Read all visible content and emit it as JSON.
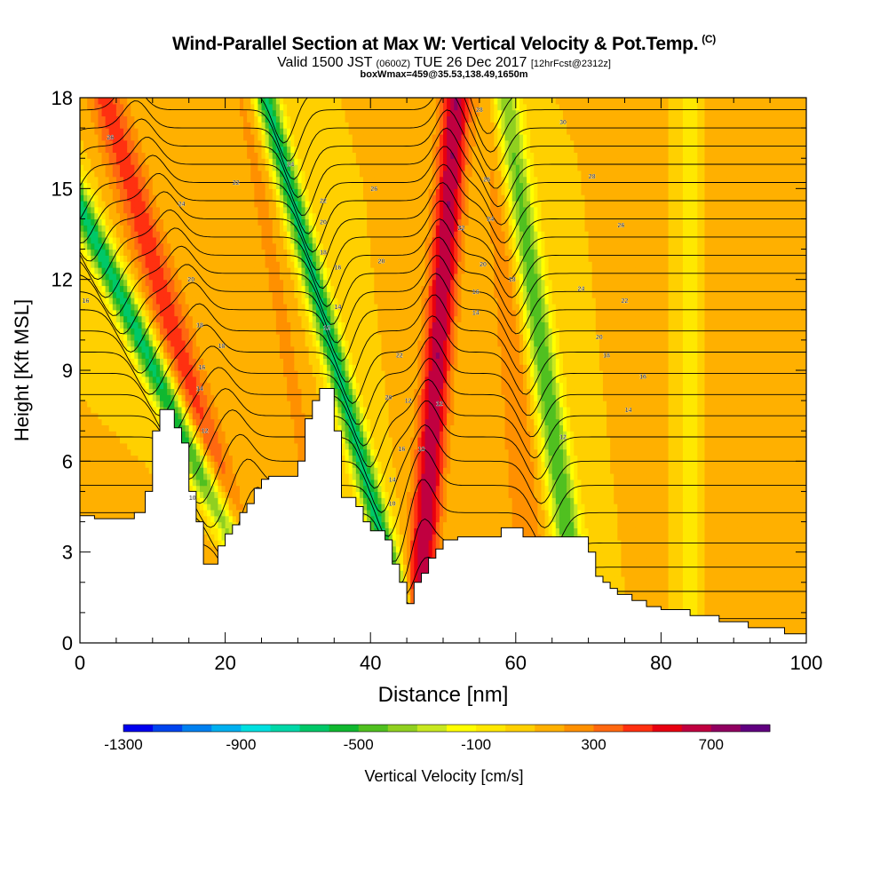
{
  "header": {
    "title": "Wind-Parallel Section at Max W: Vertical Velocity & Pot.Temp.",
    "copyright": "(C)",
    "valid_pre": "Valid 1500 JST",
    "valid_utc": "(0600Z)",
    "valid_date": "TUE 26 Dec 2017",
    "forecast": "[12hrFcst@2312z]",
    "box": "boxWmax=459@35.53,138.49,1650m"
  },
  "chart_data": {
    "type": "heatmap",
    "xlabel": "Distance [nm]",
    "ylabel": "Height [Kft MSL]",
    "xlim": [
      0,
      100
    ],
    "ylim": [
      0,
      18
    ],
    "xticks": [
      0,
      20,
      40,
      60,
      80,
      100
    ],
    "yticks": [
      0,
      3,
      6,
      9,
      12,
      15,
      18
    ],
    "xtick_labels": [
      "0",
      "20",
      "40",
      "60",
      "80",
      "100"
    ],
    "ytick_labels": [
      "0",
      "3",
      "6",
      "9",
      "12",
      "15",
      "18"
    ],
    "colorbar": {
      "label": "Vertical Velocity [cm/s]",
      "min": -1300,
      "step": 100,
      "tick_labels": [
        "-1300",
        "-900",
        "-500",
        "-100",
        "300",
        "700"
      ],
      "colors": [
        "#0000ee",
        "#0044ee",
        "#0080f0",
        "#00b0f0",
        "#00e0e0",
        "#00d8a8",
        "#00c868",
        "#10b830",
        "#50c020",
        "#90d020",
        "#c8e820",
        "#ffff00",
        "#ffe800",
        "#ffd000",
        "#ffb000",
        "#ff9000",
        "#ff6810",
        "#ff3010",
        "#e80010",
        "#c00040",
        "#900060",
        "#600080"
      ]
    },
    "terrain": [
      [
        0,
        4.2
      ],
      [
        2,
        4.2
      ],
      [
        2,
        4.1
      ],
      [
        7.5,
        4.1
      ],
      [
        7.5,
        4.3
      ],
      [
        9,
        4.3
      ],
      [
        9,
        5.0
      ],
      [
        10,
        5.0
      ],
      [
        10,
        7.0
      ],
      [
        11,
        7.0
      ],
      [
        11,
        7.7
      ],
      [
        13,
        7.7
      ],
      [
        13,
        7.1
      ],
      [
        14,
        7.1
      ],
      [
        14,
        6.6
      ],
      [
        15,
        6.6
      ],
      [
        15,
        5.0
      ],
      [
        16,
        5.0
      ],
      [
        16,
        4.0
      ],
      [
        17,
        4.0
      ],
      [
        17,
        2.6
      ],
      [
        19,
        2.6
      ],
      [
        19,
        3.2
      ],
      [
        20,
        3.2
      ],
      [
        20,
        3.6
      ],
      [
        21,
        3.6
      ],
      [
        21,
        3.9
      ],
      [
        22,
        3.9
      ],
      [
        22,
        4.3
      ],
      [
        23,
        4.3
      ],
      [
        23,
        4.6
      ],
      [
        24,
        4.6
      ],
      [
        24,
        5.1
      ],
      [
        25,
        5.1
      ],
      [
        25,
        5.4
      ],
      [
        26,
        5.4
      ],
      [
        26,
        5.5
      ],
      [
        30,
        5.5
      ],
      [
        30,
        6.0
      ],
      [
        31,
        6.0
      ],
      [
        31,
        7.4
      ],
      [
        32,
        7.4
      ],
      [
        32,
        8.0
      ],
      [
        33,
        8.0
      ],
      [
        33,
        8.4
      ],
      [
        35,
        8.4
      ],
      [
        35,
        7.0
      ],
      [
        36,
        7.0
      ],
      [
        36,
        4.8
      ],
      [
        38,
        4.8
      ],
      [
        38,
        4.5
      ],
      [
        39,
        4.5
      ],
      [
        39,
        4.0
      ],
      [
        40,
        4.0
      ],
      [
        40,
        3.7
      ],
      [
        42,
        3.7
      ],
      [
        42,
        3.4
      ],
      [
        43,
        3.4
      ],
      [
        43,
        2.6
      ],
      [
        44,
        2.6
      ],
      [
        44,
        2.0
      ],
      [
        45,
        2.0
      ],
      [
        45,
        1.3
      ],
      [
        46,
        1.3
      ],
      [
        46,
        2.0
      ],
      [
        47,
        2.0
      ],
      [
        47,
        2.3
      ],
      [
        48,
        2.3
      ],
      [
        48,
        2.8
      ],
      [
        49,
        2.8
      ],
      [
        49,
        3.1
      ],
      [
        50,
        3.1
      ],
      [
        50,
        3.4
      ],
      [
        52,
        3.4
      ],
      [
        52,
        3.5
      ],
      [
        58,
        3.5
      ],
      [
        58,
        3.8
      ],
      [
        61,
        3.8
      ],
      [
        61,
        3.5
      ],
      [
        70,
        3.5
      ],
      [
        70,
        3.0
      ],
      [
        71,
        3.0
      ],
      [
        71,
        2.2
      ],
      [
        72,
        2.2
      ],
      [
        72,
        2.0
      ],
      [
        73,
        2.0
      ],
      [
        73,
        1.8
      ],
      [
        74,
        1.8
      ],
      [
        74,
        1.6
      ],
      [
        76,
        1.6
      ],
      [
        76,
        1.4
      ],
      [
        78,
        1.4
      ],
      [
        78,
        1.2
      ],
      [
        80,
        1.2
      ],
      [
        80,
        1.1
      ],
      [
        84,
        1.1
      ],
      [
        84,
        0.9
      ],
      [
        88,
        0.9
      ],
      [
        88,
        0.7
      ],
      [
        92,
        0.7
      ],
      [
        92,
        0.5
      ],
      [
        97,
        0.5
      ],
      [
        97,
        0.3
      ],
      [
        100,
        0.3
      ]
    ],
    "w_field": {
      "background": 100,
      "features": [
        {
          "x0": 16.0,
          "slope": -1.9,
          "sigma": 2.0,
          "amp": -750,
          "h0": 6.0
        },
        {
          "x0": 21.0,
          "slope": -1.2,
          "sigma": 2.6,
          "amp": 350,
          "h0": 3.5
        },
        {
          "x0": 30.0,
          "slope": -0.7,
          "sigma": 2.0,
          "amp": 120,
          "h0": 7.5
        },
        {
          "x0": 41.0,
          "slope": -1.1,
          "sigma": 1.7,
          "amp": -750,
          "h0": 4.0
        },
        {
          "x0": 47.0,
          "slope": 0.3,
          "sigma": 2.0,
          "amp": 600,
          "h0": 2.0
        },
        {
          "x0": 63.0,
          "slope": -0.6,
          "sigma": 2.0,
          "amp": -600,
          "h0": 10.5
        },
        {
          "x0": 59.0,
          "slope": -0.3,
          "sigma": 2.5,
          "amp": 180,
          "h0": 12.0
        },
        {
          "x0": 84.0,
          "slope": 0.0,
          "sigma": 1.5,
          "amp": -200,
          "h0": 11.5
        },
        {
          "x0": 90.0,
          "slope": 0.0,
          "sigma": 5.0,
          "amp": 60,
          "h0": 0.0
        }
      ]
    },
    "theta_contours": {
      "base_heights": [
        0.8,
        1.7,
        2.5,
        3.3,
        4.3,
        5.2,
        6.0,
        6.8,
        7.5,
        8.2,
        8.9,
        9.6,
        10.3,
        11.0,
        11.6,
        12.2,
        12.8,
        13.4,
        14.0,
        14.6,
        15.2,
        15.8,
        16.4,
        17.0,
        17.6,
        18.2
      ],
      "waves": [
        {
          "x0": 16.5,
          "slope": -1.9,
          "sigma": 2.6,
          "amp": -1.4
        },
        {
          "x0": 22.0,
          "slope": -1.3,
          "sigma": 2.4,
          "amp": 0.9
        },
        {
          "x0": 41.5,
          "slope": -1.1,
          "sigma": 2.2,
          "amp": -1.7
        },
        {
          "x0": 47.5,
          "slope": 0.3,
          "sigma": 2.2,
          "amp": 1.2
        },
        {
          "x0": 63.5,
          "slope": -0.6,
          "sigma": 2.4,
          "amp": -1.4
        }
      ],
      "labels": [
        {
          "text": "16",
          "x": 0.8,
          "y": 11.3
        },
        {
          "text": "26",
          "x": 4.2,
          "y": 16.7
        },
        {
          "text": "24",
          "x": 14.0,
          "y": 14.5
        },
        {
          "text": "20",
          "x": 15.3,
          "y": 12.0
        },
        {
          "text": "18",
          "x": 16.5,
          "y": 10.5
        },
        {
          "text": "16",
          "x": 16.8,
          "y": 9.1
        },
        {
          "text": "14",
          "x": 16.5,
          "y": 8.4
        },
        {
          "text": "12",
          "x": 17.2,
          "y": 7.0
        },
        {
          "text": "10",
          "x": 15.5,
          "y": 4.8
        },
        {
          "text": "22",
          "x": 21.5,
          "y": 15.2
        },
        {
          "text": "18",
          "x": 19.5,
          "y": 9.8
        },
        {
          "text": "24",
          "x": 29.0,
          "y": 15.8
        },
        {
          "text": "22",
          "x": 33.5,
          "y": 14.6
        },
        {
          "text": "20",
          "x": 33.5,
          "y": 13.9
        },
        {
          "text": "18",
          "x": 33.5,
          "y": 12.9
        },
        {
          "text": "16",
          "x": 35.5,
          "y": 12.4
        },
        {
          "text": "14",
          "x": 35.5,
          "y": 11.1
        },
        {
          "text": "12",
          "x": 34.0,
          "y": 10.4
        },
        {
          "text": "26",
          "x": 40.5,
          "y": 15.0
        },
        {
          "text": "20",
          "x": 41.5,
          "y": 12.6
        },
        {
          "text": "22",
          "x": 44.0,
          "y": 9.5
        },
        {
          "text": "20",
          "x": 42.5,
          "y": 8.1
        },
        {
          "text": "16",
          "x": 44.3,
          "y": 6.4
        },
        {
          "text": "14",
          "x": 43.0,
          "y": 5.4
        },
        {
          "text": "10",
          "x": 43.0,
          "y": 4.6
        },
        {
          "text": "12",
          "x": 45.2,
          "y": 8.0
        },
        {
          "text": "10",
          "x": 47.0,
          "y": 6.4
        },
        {
          "text": "12",
          "x": 49.5,
          "y": 7.9
        },
        {
          "text": "28",
          "x": 55.0,
          "y": 17.6
        },
        {
          "text": "26",
          "x": 56.0,
          "y": 15.3
        },
        {
          "text": "24",
          "x": 56.5,
          "y": 14.0
        },
        {
          "text": "22",
          "x": 52.5,
          "y": 13.7
        },
        {
          "text": "20",
          "x": 55.5,
          "y": 12.5
        },
        {
          "text": "16",
          "x": 54.5,
          "y": 11.6
        },
        {
          "text": "14",
          "x": 54.5,
          "y": 10.9
        },
        {
          "text": "18",
          "x": 59.5,
          "y": 12.0
        },
        {
          "text": "30",
          "x": 66.5,
          "y": 17.2
        },
        {
          "text": "28",
          "x": 70.5,
          "y": 15.4
        },
        {
          "text": "26",
          "x": 74.5,
          "y": 13.8
        },
        {
          "text": "24",
          "x": 69.0,
          "y": 11.7
        },
        {
          "text": "22",
          "x": 75.0,
          "y": 11.3
        },
        {
          "text": "20",
          "x": 71.5,
          "y": 10.1
        },
        {
          "text": "18",
          "x": 72.5,
          "y": 9.5
        },
        {
          "text": "16",
          "x": 77.5,
          "y": 8.8
        },
        {
          "text": "14",
          "x": 75.5,
          "y": 7.7
        },
        {
          "text": "12",
          "x": 66.5,
          "y": 6.8
        }
      ]
    }
  }
}
